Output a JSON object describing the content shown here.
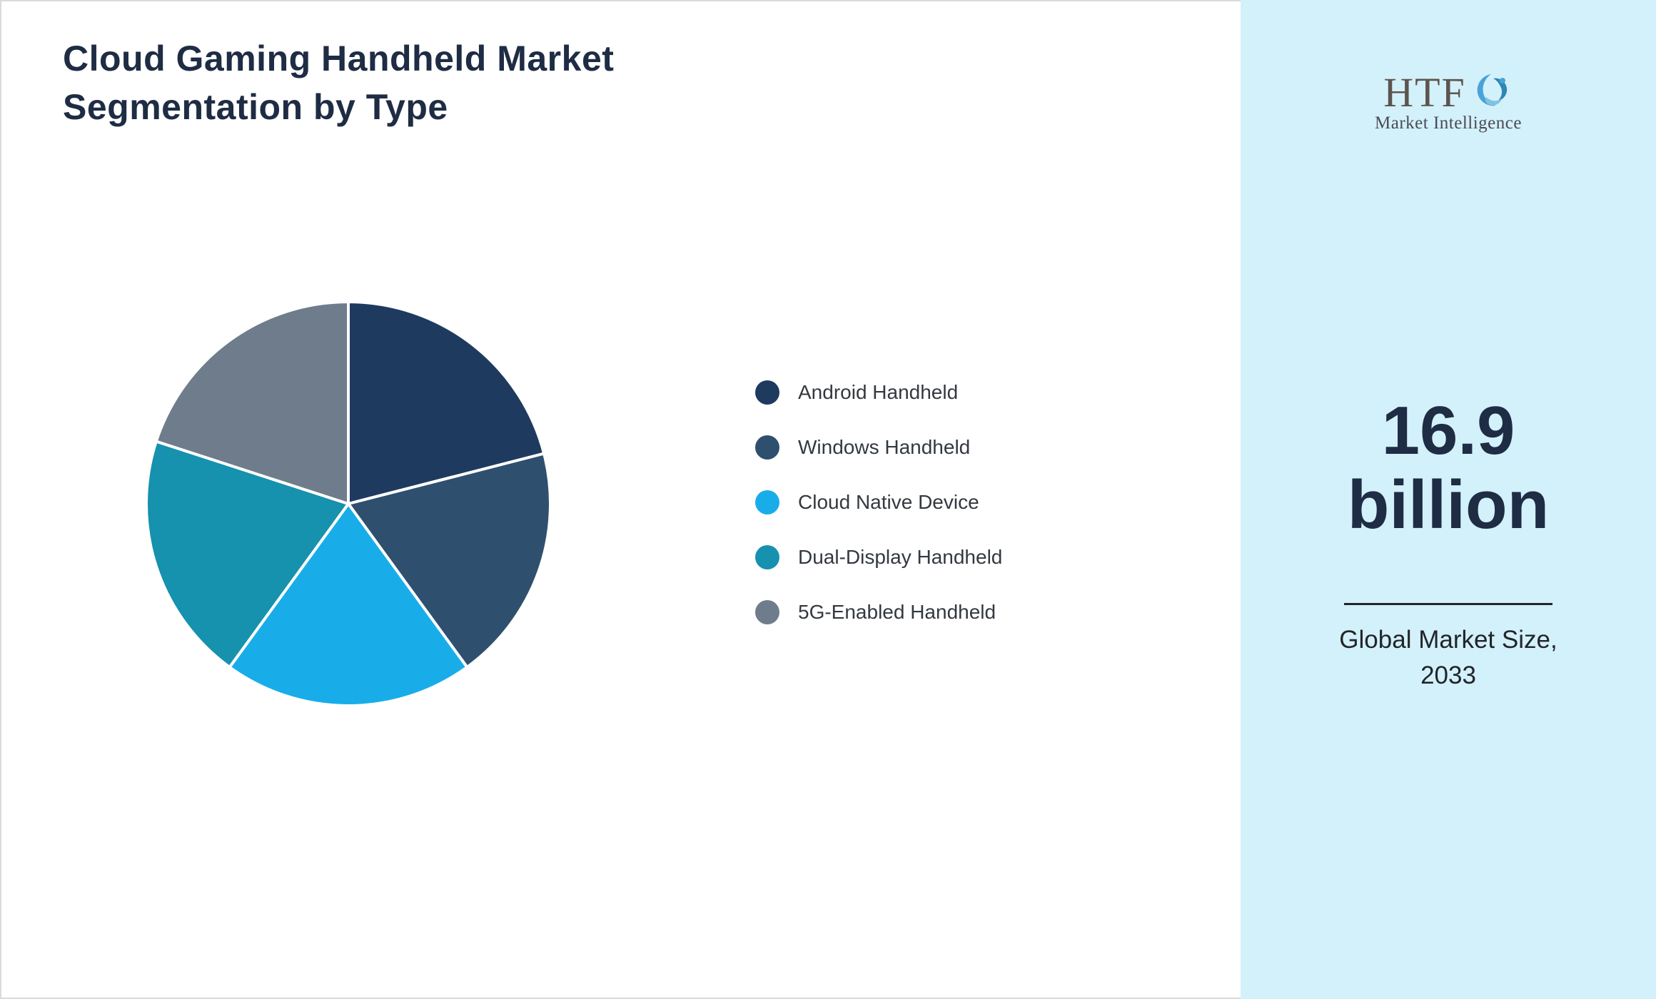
{
  "title": "Cloud Gaming Handheld Market Segmentation by Type",
  "chart_data": {
    "type": "pie",
    "title": "Cloud Gaming Handheld Market Segmentation by Type",
    "labels": [
      "Android Handheld",
      "Windows Handheld",
      "Cloud Native Device",
      "Dual-Display Handheld",
      "5G-Enabled Handheld"
    ],
    "values": [
      21,
      19,
      20,
      20,
      20
    ],
    "colors": [
      "#1f3a5f",
      "#2f4f6f",
      "#18ade9",
      "#1691ae",
      "#6f7c8b"
    ],
    "start_angle_deg": -90,
    "direction": "clockwise",
    "legend_position": "right",
    "slice_border_color": "#ffffff"
  },
  "sidebar": {
    "background": "#d3f1fa",
    "logo": {
      "text": "HTF",
      "subtext": "Market Intelligence",
      "icon": "dolphin-icon"
    },
    "market_size_value": "16.9",
    "market_size_unit": "billion",
    "caption_line1": "Global Market Size,",
    "caption_line2": "2033"
  }
}
